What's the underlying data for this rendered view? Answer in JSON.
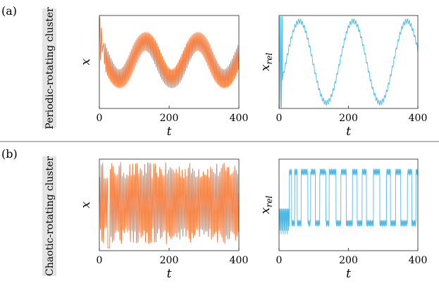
{
  "panel_letters": [
    "(a)",
    "(b)"
  ],
  "row_labels": [
    "Periodic-rotating cluster",
    "Chaotic-rotating cluster"
  ],
  "colors": {
    "x_series": "#F07B3F",
    "xrel_series": "#4FB8E6"
  },
  "chart_data": [
    {
      "type": "line",
      "panel": "a",
      "subplot": "x",
      "xlabel": "t",
      "ylabel": "x",
      "xlim": [
        0,
        400
      ],
      "xticks": [
        0,
        200,
        400
      ],
      "yticks": [],
      "series": [
        {
          "behavior": "fast oscillation with slow periodic envelope (period ~150)",
          "color": "#F07B3F"
        }
      ]
    },
    {
      "type": "line",
      "panel": "a",
      "subplot": "xrel",
      "xlabel": "t",
      "ylabel": "x",
      "ylabel_sub": "rel",
      "xlim": [
        0,
        400
      ],
      "xticks": [
        0,
        200,
        400
      ],
      "yticks": [],
      "series": [
        {
          "behavior": "slow periodic oscillation (period ~155) with small ripple",
          "color": "#4FB8E6"
        }
      ]
    },
    {
      "type": "line",
      "panel": "b",
      "subplot": "x",
      "xlabel": "t",
      "ylabel": "x",
      "xlim": [
        0,
        400
      ],
      "xticks": [
        0,
        200,
        400
      ],
      "yticks": [],
      "series": [
        {
          "behavior": "fast irregular (chaotic) oscillation",
          "color": "#F07B3F"
        }
      ]
    },
    {
      "type": "line",
      "panel": "b",
      "subplot": "xrel",
      "xlabel": "t",
      "ylabel": "x",
      "ylabel_sub": "rel",
      "xlim": [
        0,
        400
      ],
      "xticks": [
        0,
        200,
        400
      ],
      "yticks": [],
      "series": [
        {
          "behavior": "irregular switching between two levels",
          "color": "#4FB8E6"
        }
      ]
    }
  ]
}
